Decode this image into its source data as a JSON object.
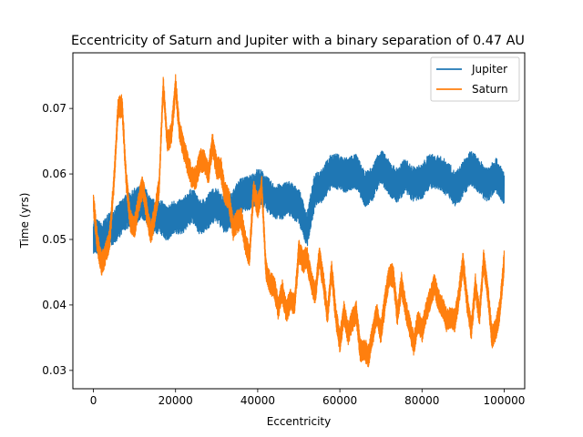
{
  "chart_data": {
    "type": "line",
    "title": "Eccentricity of Saturn and Jupiter with a binary separation of 0.47 AU",
    "xlabel": "Eccentricity",
    "ylabel": "Time (yrs)",
    "xlim": [
      -5000,
      105000
    ],
    "ylim": [
      0.0272,
      0.0785
    ],
    "xticks": [
      0,
      20000,
      40000,
      60000,
      80000,
      100000
    ],
    "xtick_labels": [
      "0",
      "20000",
      "40000",
      "60000",
      "80000",
      "100000"
    ],
    "yticks": [
      0.03,
      0.04,
      0.05,
      0.06,
      0.07
    ],
    "ytick_labels": [
      "0.03",
      "0.04",
      "0.05",
      "0.06",
      "0.07"
    ],
    "grid": false,
    "legend_position": "top-right",
    "series": [
      {
        "name": "Jupiter",
        "color": "#1f77b4",
        "band": 0.0027,
        "x": [
          0,
          2000,
          4000,
          6000,
          8000,
          10000,
          12000,
          14000,
          16000,
          18000,
          20000,
          22000,
          24000,
          26000,
          28000,
          30000,
          32000,
          34000,
          36000,
          38000,
          40000,
          42000,
          44000,
          46000,
          48000,
          50000,
          52000,
          54000,
          56000,
          58000,
          60000,
          62000,
          64000,
          66000,
          68000,
          70000,
          72000,
          74000,
          76000,
          78000,
          80000,
          82000,
          84000,
          86000,
          88000,
          90000,
          92000,
          94000,
          96000,
          98000,
          100000
        ],
        "y": [
          0.0505,
          0.0495,
          0.052,
          0.0525,
          0.054,
          0.0555,
          0.0555,
          0.0535,
          0.054,
          0.052,
          0.0535,
          0.054,
          0.0548,
          0.0535,
          0.0545,
          0.055,
          0.0538,
          0.0548,
          0.0565,
          0.0575,
          0.058,
          0.057,
          0.0562,
          0.0555,
          0.0562,
          0.0555,
          0.051,
          0.0578,
          0.0588,
          0.06,
          0.0605,
          0.06,
          0.06,
          0.058,
          0.0585,
          0.061,
          0.0598,
          0.058,
          0.0595,
          0.0588,
          0.0585,
          0.0605,
          0.0605,
          0.059,
          0.0578,
          0.0595,
          0.0605,
          0.0598,
          0.0585,
          0.0595,
          0.058
        ]
      },
      {
        "name": "Saturn",
        "color": "#ff7f0e",
        "band": 0.0018,
        "x": [
          0,
          1000,
          2000,
          3000,
          4000,
          5000,
          6000,
          7000,
          8000,
          9000,
          10000,
          11000,
          12000,
          13000,
          14000,
          15000,
          16000,
          17000,
          18000,
          19000,
          20000,
          21000,
          22000,
          23000,
          24000,
          25000,
          26000,
          27000,
          28000,
          29000,
          30000,
          31000,
          32000,
          33000,
          34000,
          35000,
          36000,
          37000,
          38000,
          39000,
          40000,
          41000,
          42000,
          43000,
          44000,
          45000,
          46000,
          47000,
          48000,
          49000,
          50000,
          51000,
          52000,
          53000,
          54000,
          55000,
          56000,
          57000,
          58000,
          59000,
          60000,
          61000,
          62000,
          63000,
          64000,
          65000,
          66000,
          67000,
          68000,
          69000,
          70000,
          71000,
          72000,
          73000,
          74000,
          75000,
          76000,
          77000,
          78000,
          79000,
          80000,
          81000,
          82000,
          83000,
          84000,
          85000,
          86000,
          87000,
          88000,
          89000,
          90000,
          91000,
          92000,
          93000,
          94000,
          95000,
          96000,
          97000,
          98000,
          99000,
          100000
        ],
        "y": [
          0.0545,
          0.049,
          0.047,
          0.049,
          0.0505,
          0.058,
          0.069,
          0.0705,
          0.06,
          0.0535,
          0.0515,
          0.0545,
          0.0575,
          0.0545,
          0.052,
          0.0545,
          0.0575,
          0.0725,
          0.0645,
          0.067,
          0.0745,
          0.0665,
          0.063,
          0.0605,
          0.0595,
          0.0605,
          0.063,
          0.0615,
          0.059,
          0.064,
          0.0615,
          0.062,
          0.0575,
          0.0555,
          0.0505,
          0.0525,
          0.054,
          0.0505,
          0.0475,
          0.0565,
          0.054,
          0.058,
          0.0465,
          0.044,
          0.0425,
          0.0385,
          0.0415,
          0.0395,
          0.042,
          0.0405,
          0.0475,
          0.0455,
          0.047,
          0.0445,
          0.0425,
          0.0475,
          0.0425,
          0.0375,
          0.0455,
          0.0395,
          0.035,
          0.0385,
          0.0345,
          0.037,
          0.0395,
          0.034,
          0.0335,
          0.0315,
          0.0345,
          0.0385,
          0.0365,
          0.0415,
          0.0445,
          0.0435,
          0.0375,
          0.0435,
          0.0405,
          0.0375,
          0.0335,
          0.0365,
          0.0355,
          0.0395,
          0.042,
          0.0435,
          0.04,
          0.0385,
          0.0375,
          0.039,
          0.0385,
          0.0415,
          0.0455,
          0.0395,
          0.0365,
          0.044,
          0.039,
          0.0465,
          0.041,
          0.0345,
          0.037,
          0.0405,
          0.047
        ]
      }
    ]
  }
}
